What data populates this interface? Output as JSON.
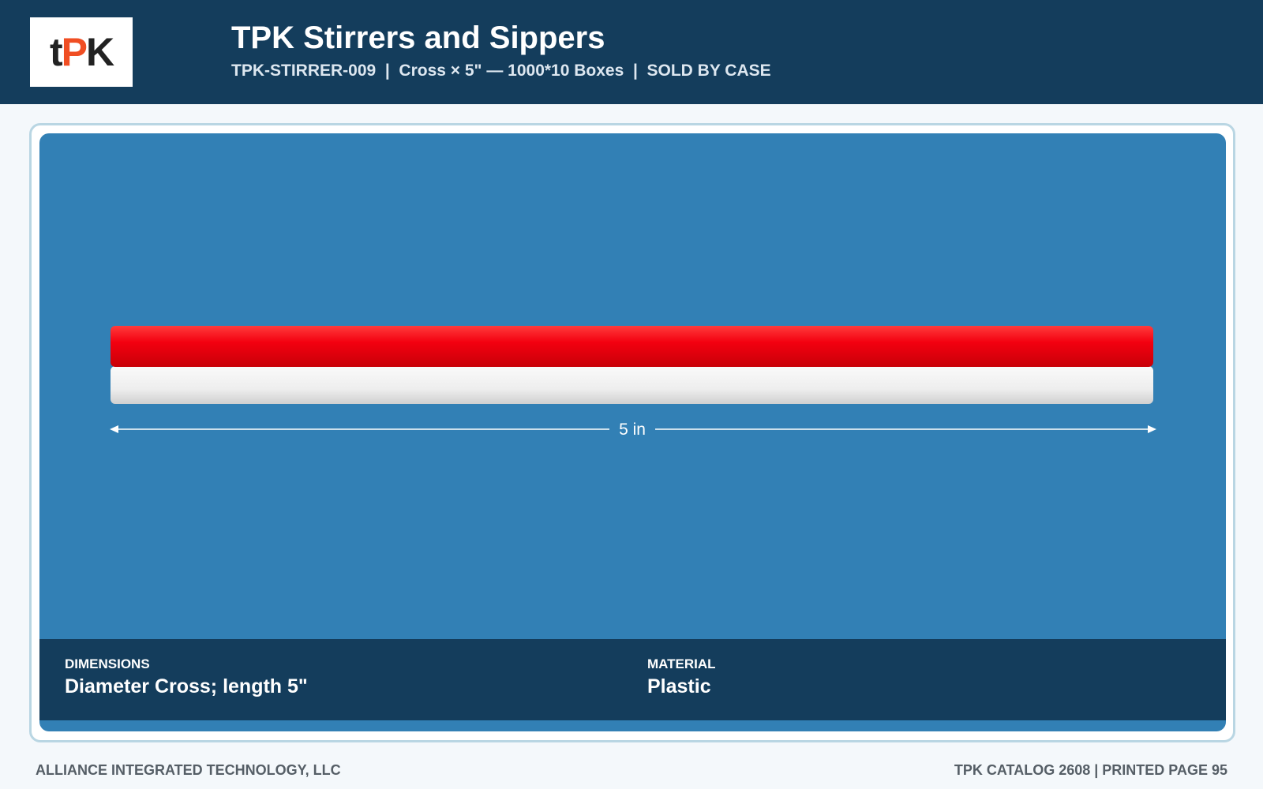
{
  "header": {
    "logo": [
      "t",
      "P",
      "K"
    ],
    "title": "TPK Stirrers and Sippers",
    "subtitle": "TPK-STIRRER-009  |  Cross × 5\" — 1000*10 Boxes  |  SOLD BY CASE"
  },
  "product": {
    "dimension_label": "5 in"
  },
  "specs": [
    {
      "label": "DIMENSIONS",
      "value": "Diameter Cross; length 5\""
    },
    {
      "label": "MATERIAL",
      "value": "Plastic"
    }
  ],
  "footer": {
    "left": "ALLIANCE INTEGRATED TECHNOLOGY, LLC",
    "right": "TPK CATALOG 2608 | PRINTED PAGE 95"
  }
}
